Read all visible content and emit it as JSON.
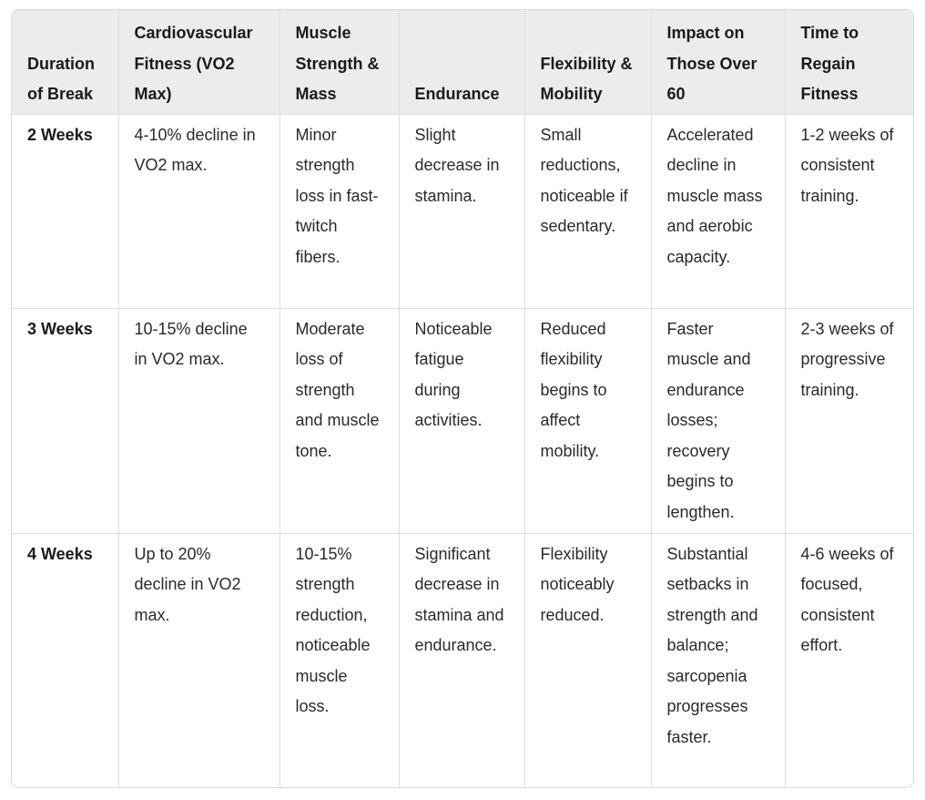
{
  "table": {
    "headers": [
      "Duration of Break",
      "Cardiovascular Fitness (VO2 Max)",
      "Muscle Strength & Mass",
      "Endurance",
      "Flexibility & Mobility",
      "Impact on Those Over 60",
      "Time to Regain Fitness"
    ],
    "rows": [
      {
        "duration": "2 Weeks",
        "cardio": "4-10% decline in VO2 max.",
        "strength": "Minor strength loss in fast-twitch fibers.",
        "endurance": "Slight decrease in stamina.",
        "flexibility": "Small reductions, noticeable if sedentary.",
        "over60": "Accelerated decline in muscle mass and aerobic capacity.",
        "regain": "1-2 weeks of consistent training."
      },
      {
        "duration": "3 Weeks",
        "cardio": "10-15% decline in VO2 max.",
        "strength": "Moderate loss of strength and muscle tone.",
        "endurance": "Noticeable fatigue during activities.",
        "flexibility": "Reduced flexibility begins to affect mobility.",
        "over60": "Faster muscle and endurance losses; recovery begins to lengthen.",
        "regain": "2-3 weeks of progressive training."
      },
      {
        "duration": "4 Weeks",
        "cardio": "Up to 20% decline in VO2 max.",
        "strength": "10-15% strength reduction, noticeable muscle loss.",
        "endurance": "Significant decrease in stamina and endurance.",
        "flexibility": "Flexibility noticeably reduced.",
        "over60": "Substantial setbacks in strength and balance; sarcopenia progresses faster.",
        "regain": "4-6 weeks of focused, consistent effort."
      }
    ]
  }
}
